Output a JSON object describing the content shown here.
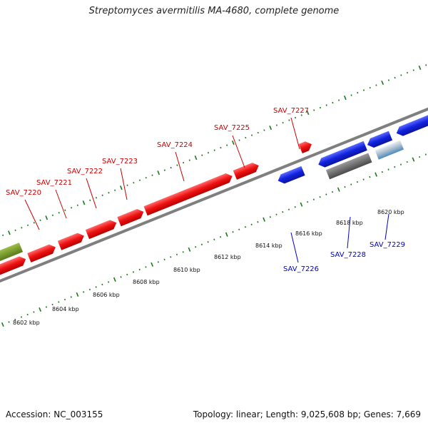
{
  "title": "Streptomyces avermitilis MA-4680, complete genome",
  "footer": {
    "accession": "Accession: NC_003155",
    "summary": "Topology: linear; Length: 9,025,608 bp; Genes: 7,669"
  },
  "colors": {
    "forward_gene": "#ee1111",
    "reverse_gene": "#1122dd",
    "other_forward": "#6e8f1f",
    "other_reverse": "#6a6a6a",
    "tick": "#1a7a1a",
    "backbone": "#8c8c8c"
  },
  "kbp_labels": [
    "8602 kbp",
    "8604 kbp",
    "8606 kbp",
    "8608 kbp",
    "8610 kbp",
    "8612 kbp",
    "8614 kbp",
    "8616 kbp",
    "8618 kbp",
    "8620 kbp"
  ],
  "forward_genes": [
    "SAV_7220",
    "SAV_7221",
    "SAV_7222",
    "SAV_7223",
    "SAV_7224",
    "SAV_7225",
    "SAV_7227"
  ],
  "reverse_genes": [
    "SAV_7226",
    "SAV_7228",
    "SAV_7229"
  ]
}
